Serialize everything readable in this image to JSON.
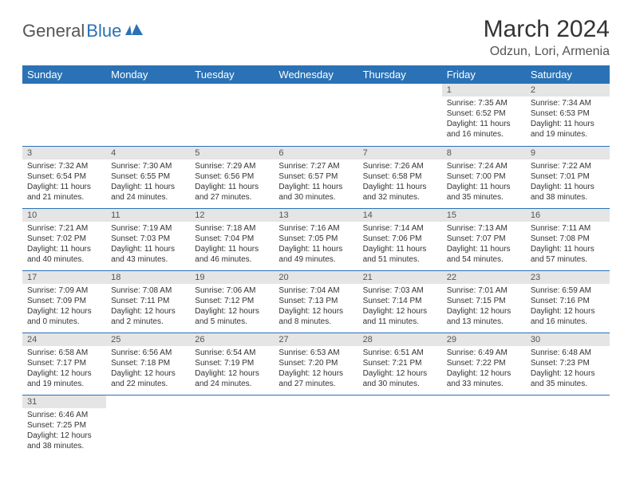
{
  "logo": {
    "part1": "General",
    "part2": "Blue"
  },
  "title": "March 2024",
  "location": "Odzun, Lori, Armenia",
  "colors": {
    "header_bg": "#2a72b5",
    "header_text": "#ffffff",
    "daynum_bg": "#e5e5e5",
    "border": "#2a72b5",
    "logo_gray": "#555555",
    "logo_blue": "#2a72b5"
  },
  "weekdays": [
    "Sunday",
    "Monday",
    "Tuesday",
    "Wednesday",
    "Thursday",
    "Friday",
    "Saturday"
  ],
  "grid": [
    [
      null,
      null,
      null,
      null,
      null,
      {
        "n": "1",
        "sr": "Sunrise: 7:35 AM",
        "ss": "Sunset: 6:52 PM",
        "dl": "Daylight: 11 hours and 16 minutes."
      },
      {
        "n": "2",
        "sr": "Sunrise: 7:34 AM",
        "ss": "Sunset: 6:53 PM",
        "dl": "Daylight: 11 hours and 19 minutes."
      }
    ],
    [
      {
        "n": "3",
        "sr": "Sunrise: 7:32 AM",
        "ss": "Sunset: 6:54 PM",
        "dl": "Daylight: 11 hours and 21 minutes."
      },
      {
        "n": "4",
        "sr": "Sunrise: 7:30 AM",
        "ss": "Sunset: 6:55 PM",
        "dl": "Daylight: 11 hours and 24 minutes."
      },
      {
        "n": "5",
        "sr": "Sunrise: 7:29 AM",
        "ss": "Sunset: 6:56 PM",
        "dl": "Daylight: 11 hours and 27 minutes."
      },
      {
        "n": "6",
        "sr": "Sunrise: 7:27 AM",
        "ss": "Sunset: 6:57 PM",
        "dl": "Daylight: 11 hours and 30 minutes."
      },
      {
        "n": "7",
        "sr": "Sunrise: 7:26 AM",
        "ss": "Sunset: 6:58 PM",
        "dl": "Daylight: 11 hours and 32 minutes."
      },
      {
        "n": "8",
        "sr": "Sunrise: 7:24 AM",
        "ss": "Sunset: 7:00 PM",
        "dl": "Daylight: 11 hours and 35 minutes."
      },
      {
        "n": "9",
        "sr": "Sunrise: 7:22 AM",
        "ss": "Sunset: 7:01 PM",
        "dl": "Daylight: 11 hours and 38 minutes."
      }
    ],
    [
      {
        "n": "10",
        "sr": "Sunrise: 7:21 AM",
        "ss": "Sunset: 7:02 PM",
        "dl": "Daylight: 11 hours and 40 minutes."
      },
      {
        "n": "11",
        "sr": "Sunrise: 7:19 AM",
        "ss": "Sunset: 7:03 PM",
        "dl": "Daylight: 11 hours and 43 minutes."
      },
      {
        "n": "12",
        "sr": "Sunrise: 7:18 AM",
        "ss": "Sunset: 7:04 PM",
        "dl": "Daylight: 11 hours and 46 minutes."
      },
      {
        "n": "13",
        "sr": "Sunrise: 7:16 AM",
        "ss": "Sunset: 7:05 PM",
        "dl": "Daylight: 11 hours and 49 minutes."
      },
      {
        "n": "14",
        "sr": "Sunrise: 7:14 AM",
        "ss": "Sunset: 7:06 PM",
        "dl": "Daylight: 11 hours and 51 minutes."
      },
      {
        "n": "15",
        "sr": "Sunrise: 7:13 AM",
        "ss": "Sunset: 7:07 PM",
        "dl": "Daylight: 11 hours and 54 minutes."
      },
      {
        "n": "16",
        "sr": "Sunrise: 7:11 AM",
        "ss": "Sunset: 7:08 PM",
        "dl": "Daylight: 11 hours and 57 minutes."
      }
    ],
    [
      {
        "n": "17",
        "sr": "Sunrise: 7:09 AM",
        "ss": "Sunset: 7:09 PM",
        "dl": "Daylight: 12 hours and 0 minutes."
      },
      {
        "n": "18",
        "sr": "Sunrise: 7:08 AM",
        "ss": "Sunset: 7:11 PM",
        "dl": "Daylight: 12 hours and 2 minutes."
      },
      {
        "n": "19",
        "sr": "Sunrise: 7:06 AM",
        "ss": "Sunset: 7:12 PM",
        "dl": "Daylight: 12 hours and 5 minutes."
      },
      {
        "n": "20",
        "sr": "Sunrise: 7:04 AM",
        "ss": "Sunset: 7:13 PM",
        "dl": "Daylight: 12 hours and 8 minutes."
      },
      {
        "n": "21",
        "sr": "Sunrise: 7:03 AM",
        "ss": "Sunset: 7:14 PM",
        "dl": "Daylight: 12 hours and 11 minutes."
      },
      {
        "n": "22",
        "sr": "Sunrise: 7:01 AM",
        "ss": "Sunset: 7:15 PM",
        "dl": "Daylight: 12 hours and 13 minutes."
      },
      {
        "n": "23",
        "sr": "Sunrise: 6:59 AM",
        "ss": "Sunset: 7:16 PM",
        "dl": "Daylight: 12 hours and 16 minutes."
      }
    ],
    [
      {
        "n": "24",
        "sr": "Sunrise: 6:58 AM",
        "ss": "Sunset: 7:17 PM",
        "dl": "Daylight: 12 hours and 19 minutes."
      },
      {
        "n": "25",
        "sr": "Sunrise: 6:56 AM",
        "ss": "Sunset: 7:18 PM",
        "dl": "Daylight: 12 hours and 22 minutes."
      },
      {
        "n": "26",
        "sr": "Sunrise: 6:54 AM",
        "ss": "Sunset: 7:19 PM",
        "dl": "Daylight: 12 hours and 24 minutes."
      },
      {
        "n": "27",
        "sr": "Sunrise: 6:53 AM",
        "ss": "Sunset: 7:20 PM",
        "dl": "Daylight: 12 hours and 27 minutes."
      },
      {
        "n": "28",
        "sr": "Sunrise: 6:51 AM",
        "ss": "Sunset: 7:21 PM",
        "dl": "Daylight: 12 hours and 30 minutes."
      },
      {
        "n": "29",
        "sr": "Sunrise: 6:49 AM",
        "ss": "Sunset: 7:22 PM",
        "dl": "Daylight: 12 hours and 33 minutes."
      },
      {
        "n": "30",
        "sr": "Sunrise: 6:48 AM",
        "ss": "Sunset: 7:23 PM",
        "dl": "Daylight: 12 hours and 35 minutes."
      }
    ],
    [
      {
        "n": "31",
        "sr": "Sunrise: 6:46 AM",
        "ss": "Sunset: 7:25 PM",
        "dl": "Daylight: 12 hours and 38 minutes."
      },
      null,
      null,
      null,
      null,
      null,
      null
    ]
  ]
}
